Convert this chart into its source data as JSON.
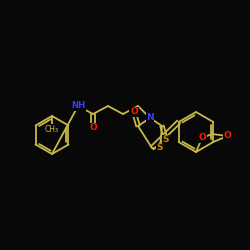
{
  "background_color": "#080808",
  "bond_color": "#c8b84a",
  "atom_colors": {
    "N": "#3a3aff",
    "O": "#ff1a00",
    "S": "#cc8800",
    "C": "#c8b84a"
  },
  "figsize": [
    2.5,
    2.5
  ],
  "dpi": 100
}
